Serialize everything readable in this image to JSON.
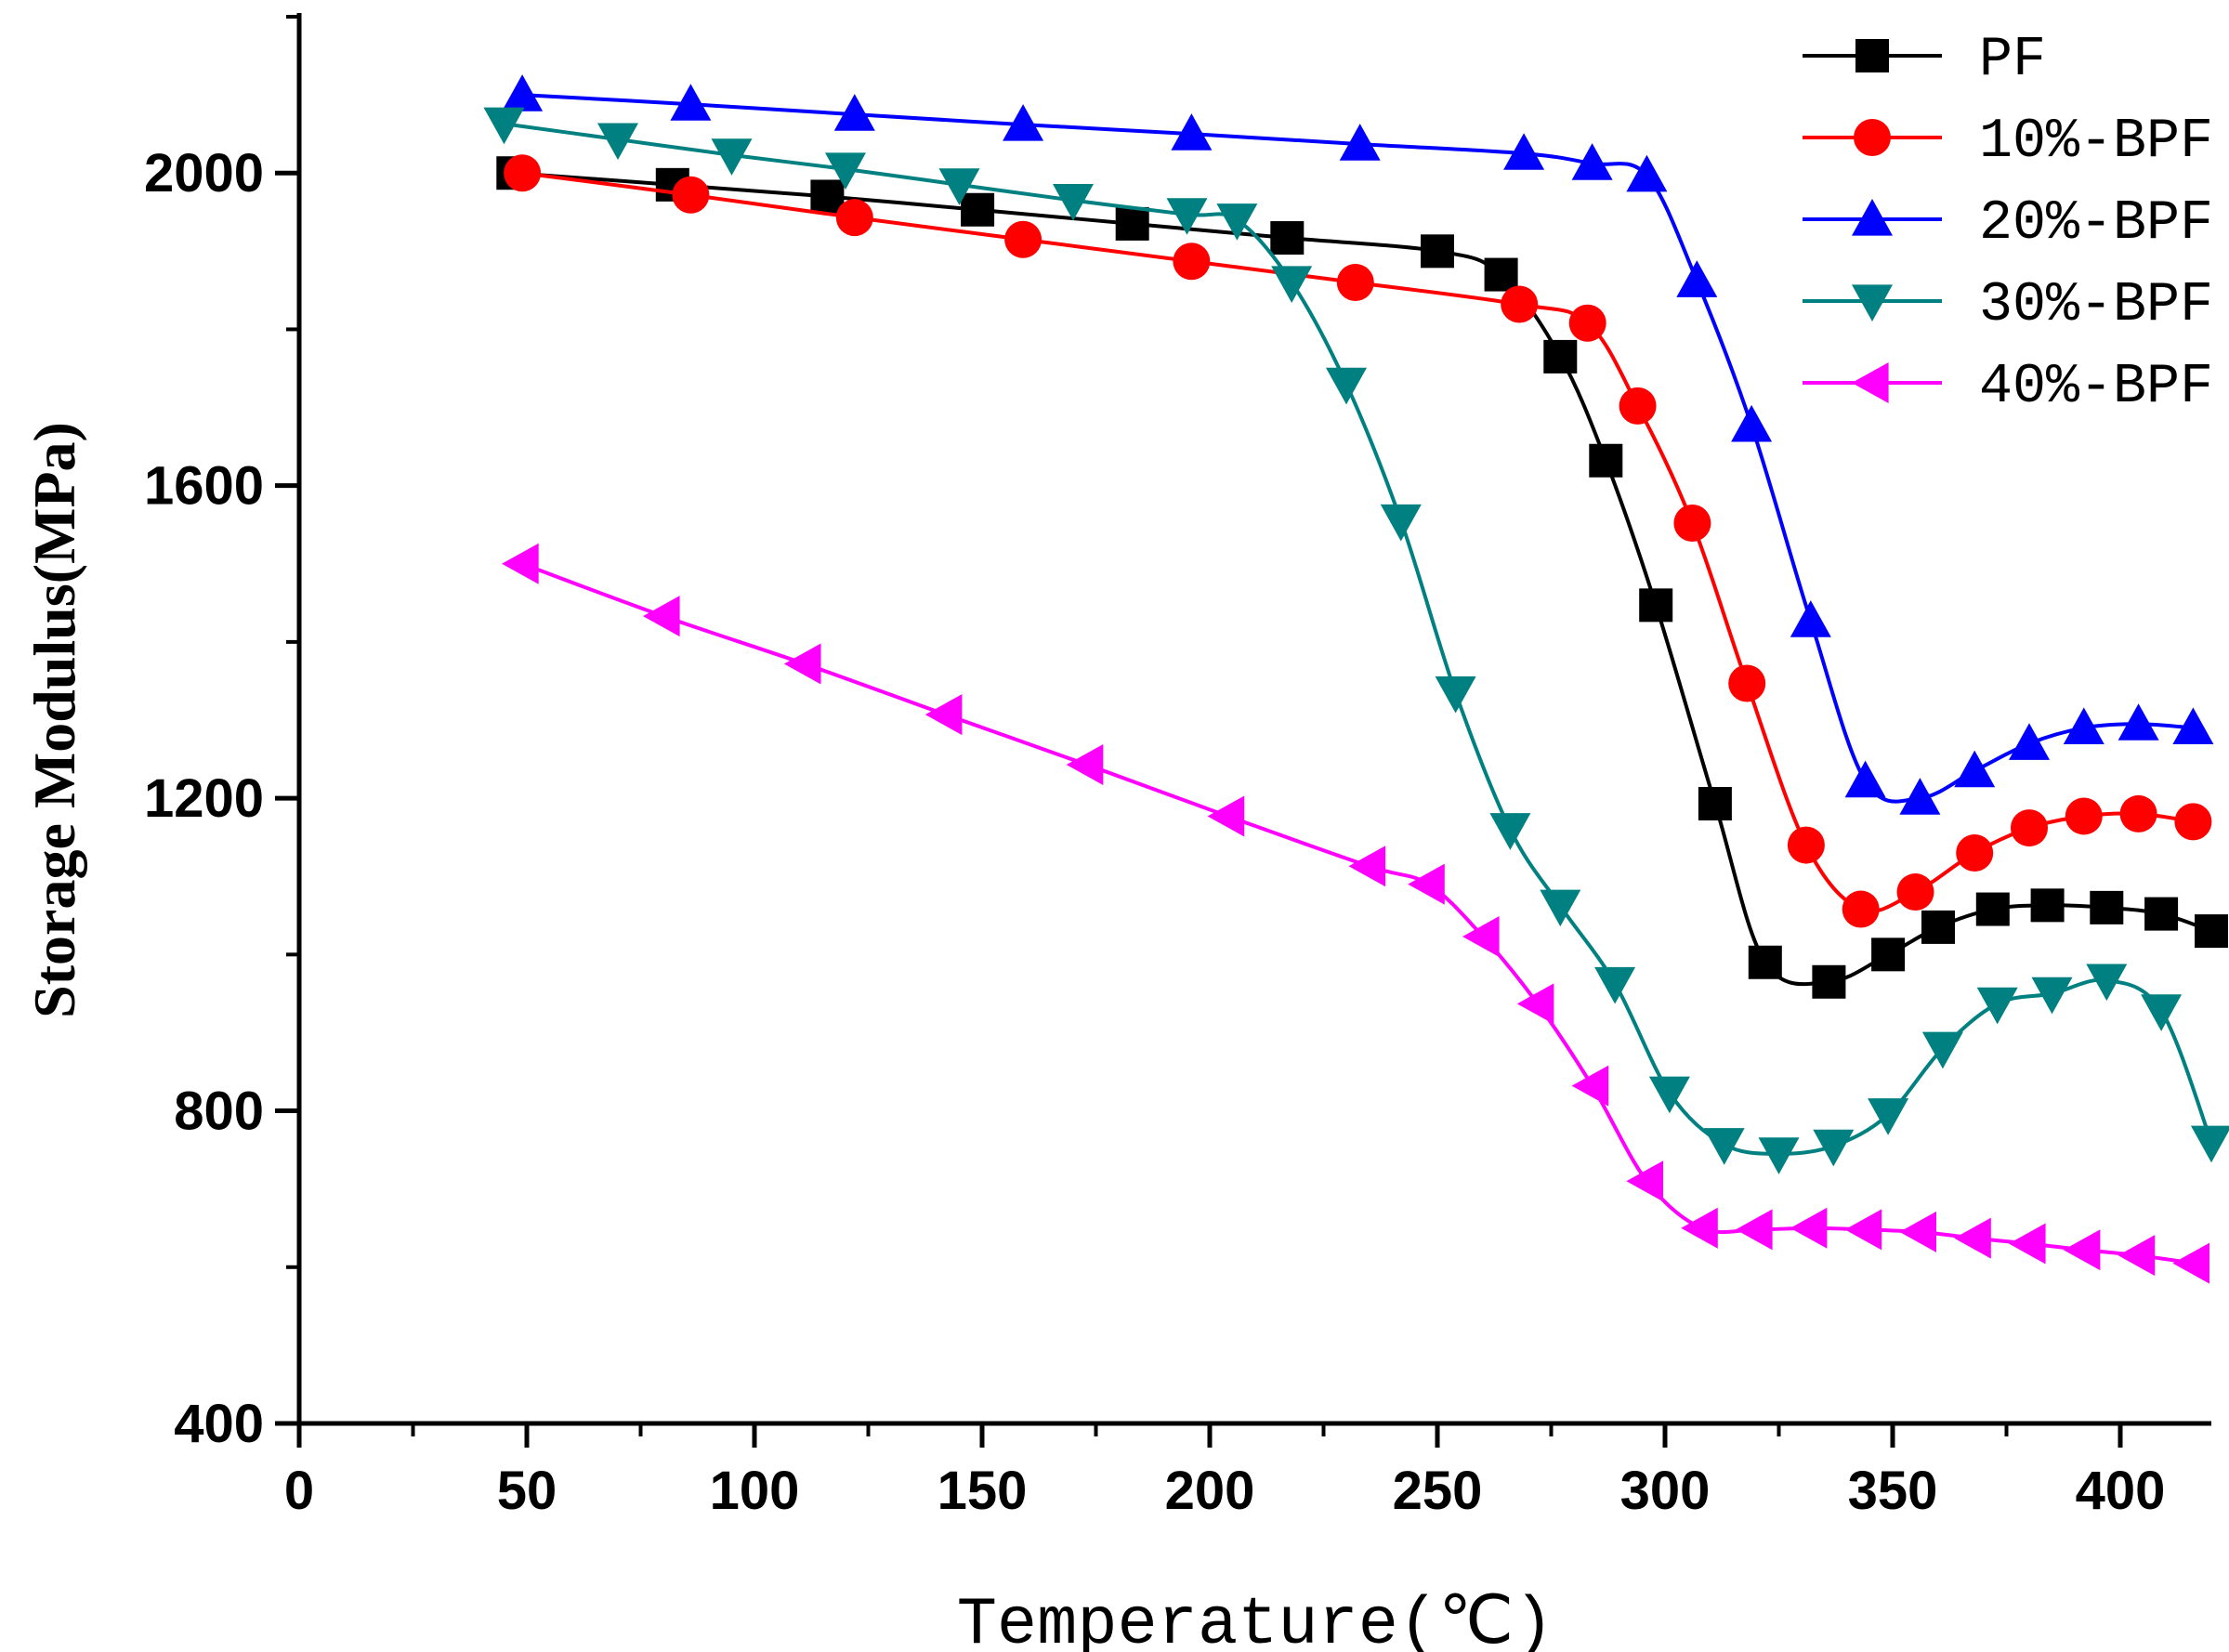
{
  "chart_data": {
    "type": "line",
    "title": "",
    "xlabel": "Temperature(℃)",
    "ylabel": "Storage Modulus(MPa)",
    "xlim": [
      0,
      420
    ],
    "ylim": [
      400,
      2200
    ],
    "x_ticks": [
      0,
      50,
      100,
      150,
      200,
      250,
      300,
      350,
      400
    ],
    "y_ticks": [
      400,
      800,
      1200,
      1600,
      2000
    ],
    "x_tick_labels": [
      "0",
      "50",
      "100",
      "150",
      "200",
      "250",
      "300",
      "350",
      "400"
    ],
    "y_tick_labels": [
      "400",
      "800",
      "1200",
      "1600",
      "2000"
    ],
    "grid": false,
    "legend_position": "top-right",
    "series": [
      {
        "name": "PF",
        "color": "#000000",
        "marker": "square",
        "x": [
          47,
          82,
          116,
          149,
          183,
          217,
          250,
          264,
          277,
          287,
          298,
          311,
          322,
          336,
          349,
          360,
          372,
          384,
          397,
          409,
          420
        ],
        "y": [
          2000,
          1985,
          1970,
          1953,
          1935,
          1917,
          1900,
          1870,
          1765,
          1632,
          1447,
          1193,
          990,
          965,
          1000,
          1035,
          1058,
          1063,
          1060,
          1052,
          1030
        ]
      },
      {
        "name": "10%-BPF",
        "color": "#ff0000",
        "marker": "circle",
        "x": [
          49,
          86,
          122,
          159,
          196,
          232,
          268,
          283,
          294,
          306,
          318,
          331,
          343,
          355,
          368,
          380,
          392,
          404,
          416
        ],
        "y": [
          2000,
          1972,
          1943,
          1915,
          1887,
          1860,
          1832,
          1808,
          1702,
          1552,
          1347,
          1140,
          1058,
          1080,
          1130,
          1162,
          1177,
          1180,
          1170
        ]
      },
      {
        "name": "20%-BPF",
        "color": "#0000ff",
        "marker": "triangle-up",
        "x": [
          49,
          86,
          122,
          159,
          196,
          233,
          269,
          284,
          296,
          307,
          319,
          332,
          344,
          356,
          368,
          380,
          392,
          404,
          416
        ],
        "y": [
          2100,
          2088,
          2075,
          2062,
          2050,
          2037,
          2025,
          2012,
          1997,
          1862,
          1677,
          1427,
          1222,
          1200,
          1235,
          1270,
          1290,
          1295,
          1290
        ]
      },
      {
        "name": "30%-BPF",
        "color": "#008080",
        "marker": "triangle-down",
        "x": [
          45,
          70,
          95,
          120,
          145,
          170,
          195,
          206,
          218,
          230,
          242,
          254,
          266,
          277,
          289,
          301,
          313,
          325,
          337,
          349,
          361,
          373,
          385,
          397,
          409,
          420
        ],
        "y": [
          2063,
          2043,
          2023,
          2005,
          1985,
          1965,
          1947,
          1940,
          1860,
          1730,
          1555,
          1335,
          1160,
          1062,
          963,
          823,
          757,
          745,
          755,
          795,
          880,
          937,
          950,
          967,
          928,
          760
        ]
      },
      {
        "name": "40%-BPF",
        "color": "#ff00ff",
        "marker": "triangle-left",
        "x": [
          49,
          80,
          111,
          142,
          173,
          204,
          235,
          248,
          260,
          272,
          284,
          296,
          308,
          320,
          332,
          344,
          356,
          368,
          380,
          392,
          404,
          416
        ],
        "y": [
          1500,
          1433,
          1372,
          1307,
          1243,
          1177,
          1113,
          1090,
          1023,
          937,
          832,
          710,
          650,
          648,
          650,
          648,
          645,
          637,
          630,
          622,
          615,
          605
        ]
      }
    ]
  }
}
